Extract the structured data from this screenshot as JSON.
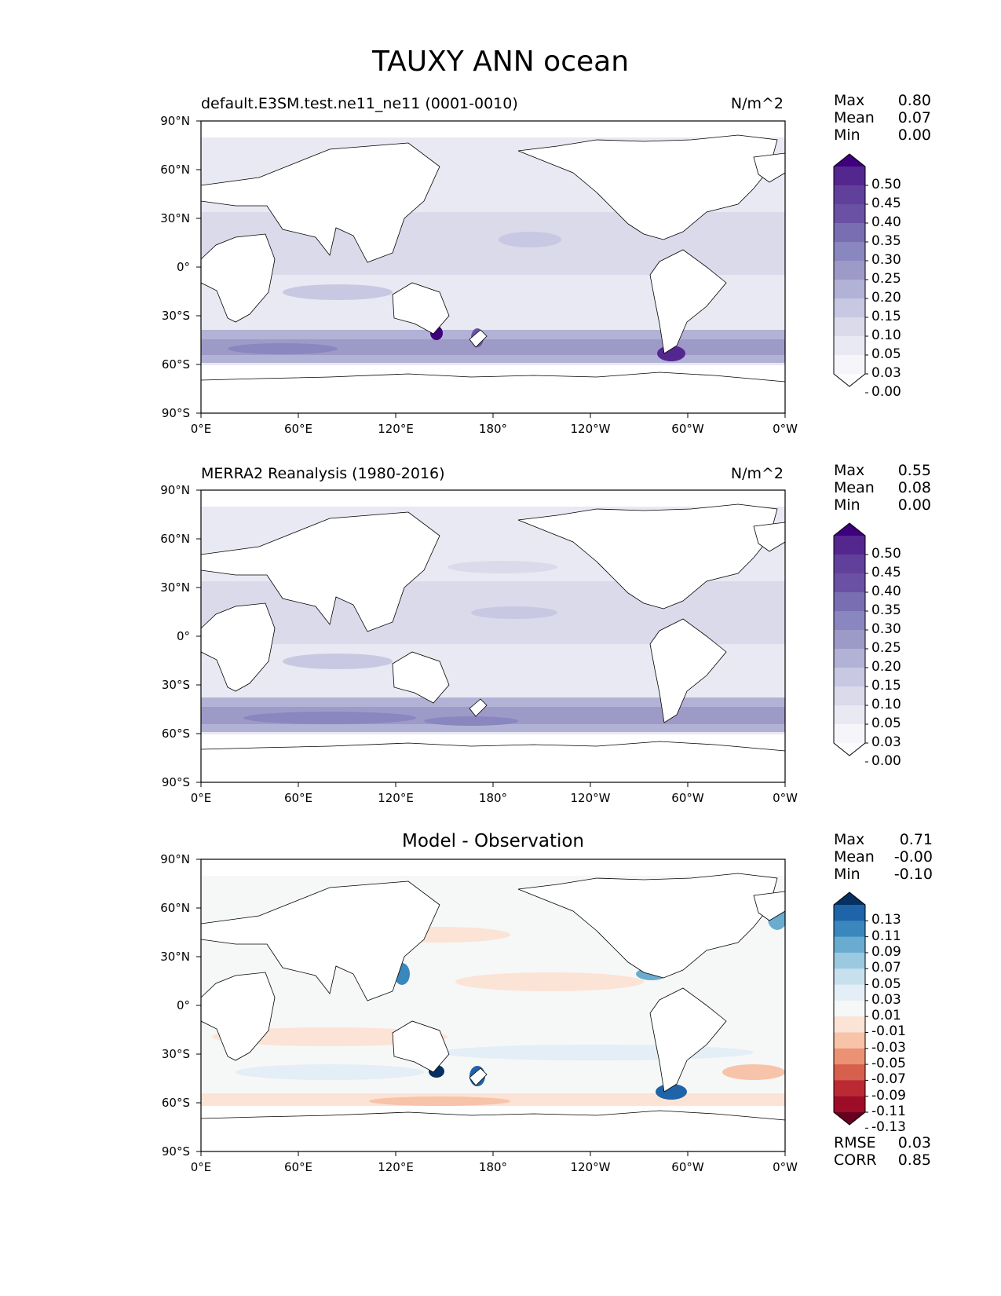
{
  "title": "TAUXY ANN ocean",
  "panels": [
    {
      "left_title": "default.E3SM.test.ne11_ne11 (0001-0010)",
      "right_title": "N/m^2",
      "stats": [
        {
          "label": "Max",
          "value": "0.80"
        },
        {
          "label": "Mean",
          "value": "0.07"
        },
        {
          "label": "Min",
          "value": "0.00"
        }
      ],
      "colorbar_labels": [
        "0.50",
        "0.45",
        "0.40",
        "0.35",
        "0.30",
        "0.25",
        "0.20",
        "0.15",
        "0.10",
        "0.05",
        "0.03",
        "0.00"
      ],
      "colors": [
        "#3f007d",
        "#54278f",
        "#61409b",
        "#6a51a3",
        "#796eb2",
        "#8a86bf",
        "#9e9ac8",
        "#b2b2d6",
        "#c8c8e2",
        "#dadaeb",
        "#e9e9f3",
        "#f6f5fa",
        "#fcfbfd"
      ]
    },
    {
      "left_title": "MERRA2 Reanalysis (1980-2016)",
      "right_title": "N/m^2",
      "stats": [
        {
          "label": "Max",
          "value": "0.55"
        },
        {
          "label": "Mean",
          "value": "0.08"
        },
        {
          "label": "Min",
          "value": "0.00"
        }
      ],
      "colorbar_labels": [
        "0.50",
        "0.45",
        "0.40",
        "0.35",
        "0.30",
        "0.25",
        "0.20",
        "0.15",
        "0.10",
        "0.05",
        "0.03",
        "0.00"
      ],
      "colors": [
        "#3f007d",
        "#54278f",
        "#61409b",
        "#6a51a3",
        "#796eb2",
        "#8a86bf",
        "#9e9ac8",
        "#b2b2d6",
        "#c8c8e2",
        "#dadaeb",
        "#e9e9f3",
        "#f6f5fa",
        "#fcfbfd"
      ]
    },
    {
      "center_title": "Model - Observation",
      "stats": [
        {
          "label": "Max",
          "value": "0.71"
        },
        {
          "label": "Mean",
          "value": "-0.00"
        },
        {
          "label": "Min",
          "value": "-0.10"
        }
      ],
      "colorbar_labels": [
        "0.13",
        "0.11",
        "0.09",
        "0.07",
        "0.05",
        "0.03",
        "0.01",
        "-0.01",
        "-0.03",
        "-0.05",
        "-0.07",
        "-0.09",
        "-0.11",
        "-0.13"
      ],
      "colors": [
        "#053061",
        "#1f63a8",
        "#3a87be",
        "#6aacd0",
        "#9bc9e0",
        "#c7e0ed",
        "#e3eef6",
        "#f6f7f7",
        "#fbe3d6",
        "#f7c3a9",
        "#eb9174",
        "#d6604d",
        "#bb2a33",
        "#9e0d27",
        "#67001f"
      ],
      "footer_stats": [
        {
          "label": "RMSE",
          "value": "0.03"
        },
        {
          "label": "CORR",
          "value": "0.85"
        }
      ]
    }
  ],
  "lat_ticks": [
    "90°N",
    "60°N",
    "30°N",
    "0°",
    "30°S",
    "60°S",
    "90°S"
  ],
  "lon_ticks": [
    "0°E",
    "60°E",
    "120°E",
    "180°",
    "120°W",
    "60°W",
    "0°W"
  ]
}
